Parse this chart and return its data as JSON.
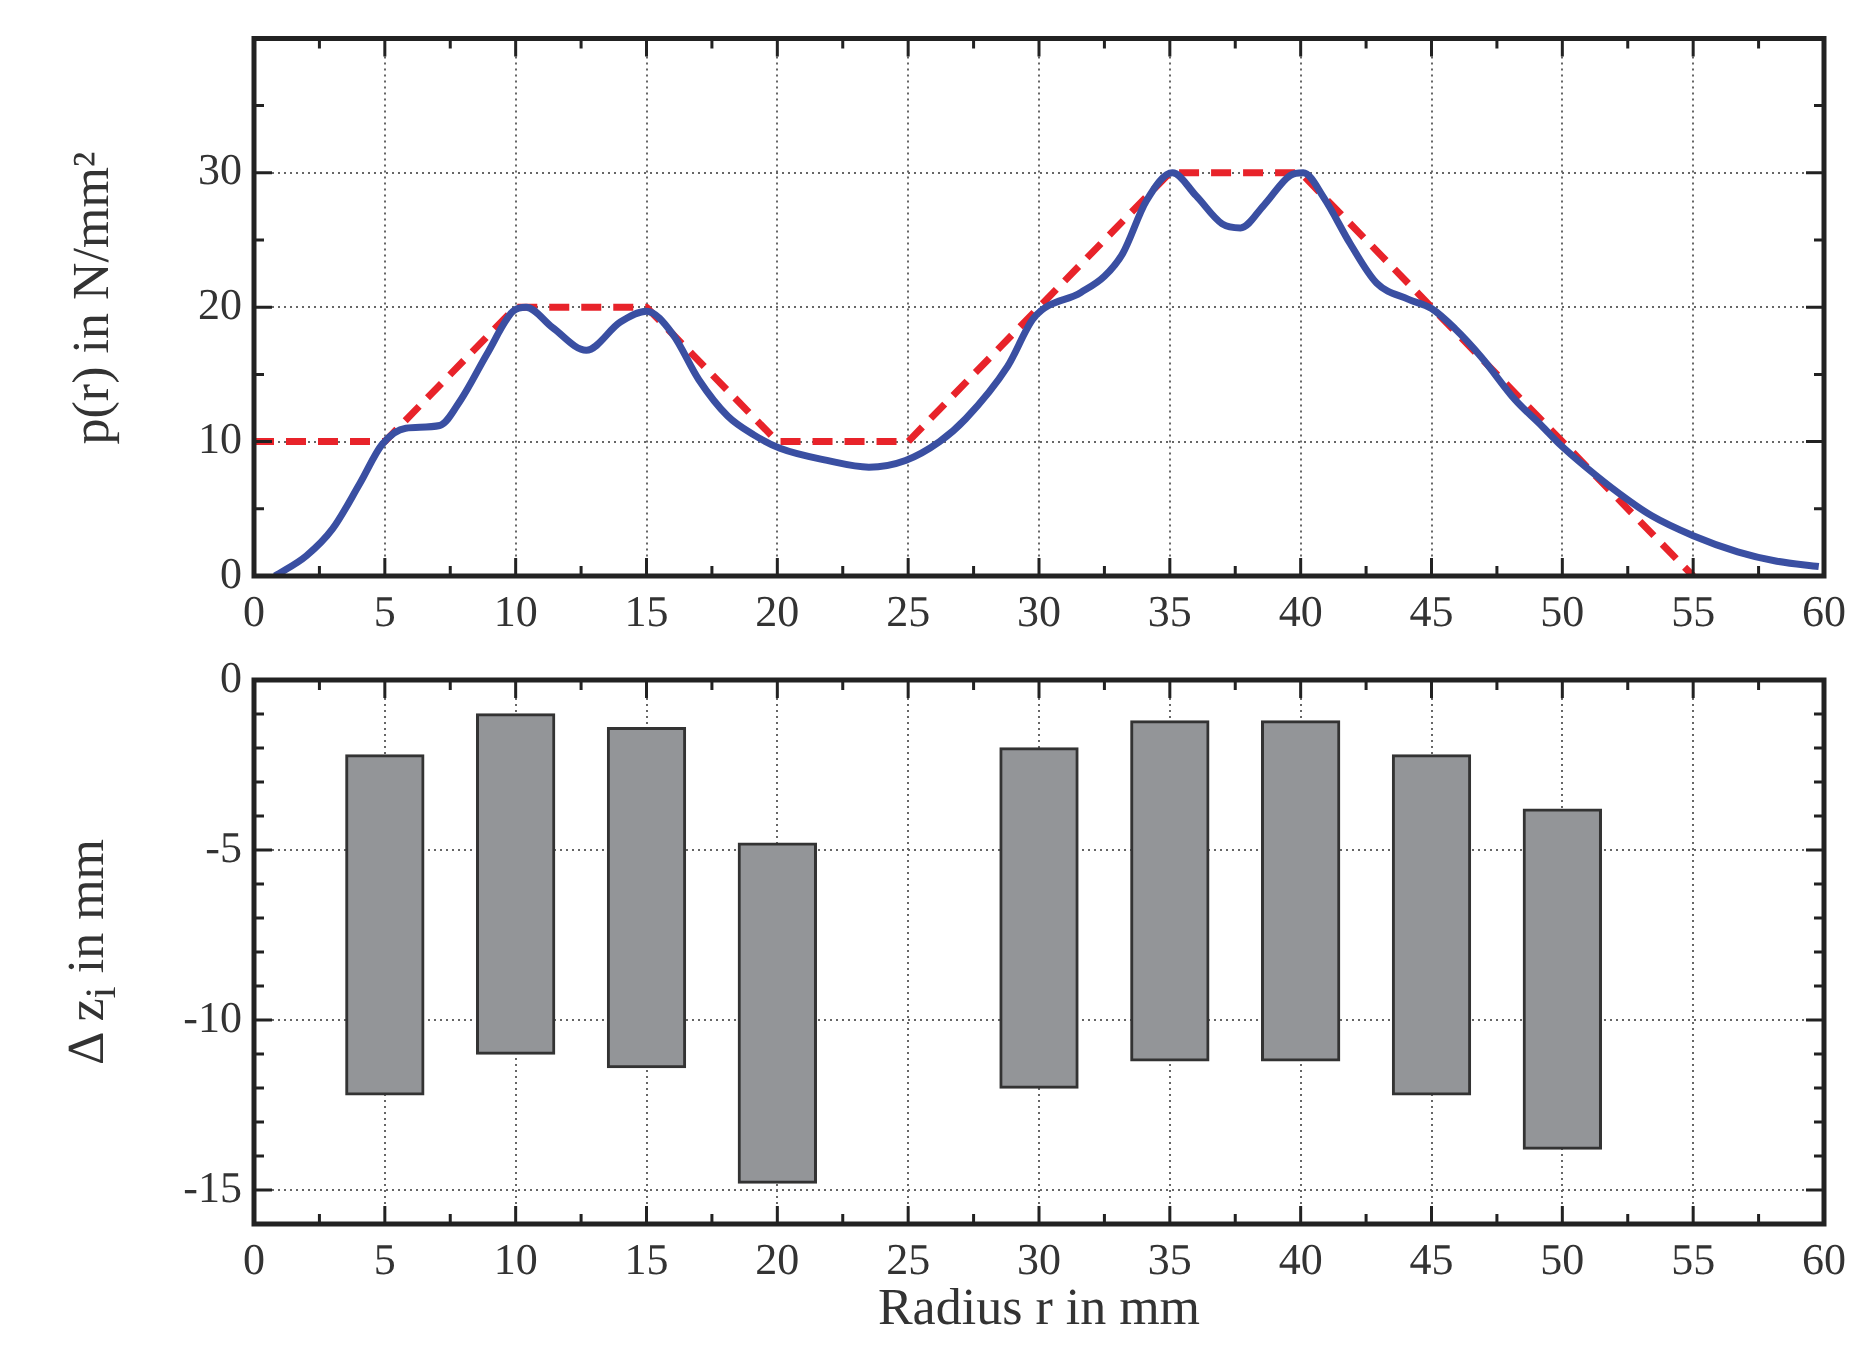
{
  "chart_data": [
    {
      "type": "line",
      "ylabel": "p(r) in N/mm²",
      "xlim": [
        0,
        60
      ],
      "xticks": [
        0,
        {
          "value": 2.5,
          "label": null
        },
        5,
        {
          "value": 7.5,
          "label": null
        },
        10,
        {
          "value": 12.5,
          "label": null
        },
        15,
        {
          "value": 17.5,
          "label": null
        },
        20,
        {
          "value": 22.5,
          "label": null
        },
        25,
        {
          "value": 27.5,
          "label": null
        },
        30,
        {
          "value": 32.5,
          "label": null
        },
        35,
        {
          "value": 37.5,
          "label": null
        },
        40,
        {
          "value": 42.5,
          "label": null
        },
        45,
        {
          "value": 47.5,
          "label": null
        },
        50,
        {
          "value": 52.5,
          "label": null
        },
        55,
        {
          "value": 57.5,
          "label": null
        },
        60
      ],
      "ylim": [
        0,
        40
      ],
      "yticks": [
        0,
        {
          "value": 5,
          "label": null
        },
        10,
        {
          "value": 15,
          "label": null
        },
        20,
        {
          "value": 25,
          "label": null
        },
        30,
        {
          "value": 35,
          "label": null
        }
      ],
      "grid": true,
      "series": [
        {
          "color": "#3a4fa2",
          "x": [
            0.8,
            2,
            3,
            4.05,
            4.9,
            5.8,
            7.1,
            7.9,
            8.9,
            9.9,
            10.4,
            11.4,
            12.7,
            14,
            15,
            16,
            17,
            18.1,
            19.1,
            20.1,
            21.9,
            23.5,
            24.9,
            26.2,
            27.2,
            28.8,
            29.8,
            31.6,
            32.5,
            33.2,
            34.1,
            35.1,
            36,
            37,
            37.7,
            38.6,
            39.6,
            40.1,
            40.9,
            41.9,
            42.9,
            44.1,
            45,
            45.9,
            46.9,
            48.2,
            49.2,
            49.9,
            50.9,
            52.2,
            53.4,
            55,
            56.7,
            58.2,
            59.8
          ],
          "values": [
            0,
            1.5,
            3.5,
            6.9,
            9.8,
            11,
            11.2,
            13.1,
            16.5,
            19.7,
            20,
            18.5,
            16.8,
            18.9,
            19.7,
            18,
            14.6,
            11.9,
            10.5,
            9.5,
            8.6,
            8.1,
            8.6,
            10,
            11.7,
            15.6,
            19.2,
            21.1,
            22.3,
            24,
            27.9,
            30,
            28.3,
            26.2,
            25.9,
            27.6,
            29.8,
            30,
            28.1,
            24.7,
            21.8,
            20.6,
            19.9,
            18.4,
            16.3,
            13.1,
            11.2,
            9.8,
            8.1,
            6.1,
            4.5,
            3,
            1.8,
            1.1,
            0.7
          ]
        },
        {
          "color": "#e8232a",
          "line_style": "dashed",
          "x": [
            0,
            5,
            10,
            15,
            20,
            25,
            35,
            40,
            55
          ],
          "values": [
            10,
            10,
            20,
            20,
            10,
            10,
            30,
            30,
            0
          ]
        }
      ]
    },
    {
      "type": "bar",
      "ylabel": "Δ z$_{i}$ in mm",
      "xlabel": "Radius r in mm",
      "xlim": [
        0,
        60
      ],
      "xticks": [
        0,
        {
          "value": 2.5,
          "label": null
        },
        5,
        {
          "value": 7.5,
          "label": null
        },
        10,
        {
          "value": 12.5,
          "label": null
        },
        15,
        {
          "value": 17.5,
          "label": null
        },
        20,
        {
          "value": 22.5,
          "label": null
        },
        25,
        {
          "value": 27.5,
          "label": null
        },
        30,
        {
          "value": 32.5,
          "label": null
        },
        35,
        {
          "value": 37.5,
          "label": null
        },
        40,
        {
          "value": 42.5,
          "label": null
        },
        45,
        {
          "value": 47.5,
          "label": null
        },
        50,
        {
          "value": 52.5,
          "label": null
        },
        55,
        {
          "value": 57.5,
          "label": null
        },
        60
      ],
      "ylim": [
        -16,
        0
      ],
      "yticks": [
        {
          "value": -16,
          "label": null
        },
        -15,
        {
          "value": -14,
          "label": null
        },
        {
          "value": -13,
          "label": null
        },
        {
          "value": -12,
          "label": null
        },
        {
          "value": -11,
          "label": null
        },
        -10,
        {
          "value": -9,
          "label": null
        },
        {
          "value": -8,
          "label": null
        },
        {
          "value": -7,
          "label": null
        },
        {
          "value": -6,
          "label": null
        },
        -5,
        {
          "value": -4,
          "label": null
        },
        {
          "value": -3,
          "label": null
        },
        {
          "value": -2,
          "label": null
        },
        {
          "value": -1,
          "label": null
        },
        0
      ],
      "grid": true,
      "x": [
        5,
        10,
        15,
        20,
        30,
        35,
        40,
        45,
        50
      ],
      "base": [
        -12.2,
        -11,
        -11.4,
        -14.8,
        -12,
        -11.2,
        -11.2,
        -12.2,
        -13.8
      ],
      "values": [
        10,
        10,
        10,
        10,
        10,
        10,
        10,
        10,
        10
      ],
      "color": "#939598"
    }
  ]
}
